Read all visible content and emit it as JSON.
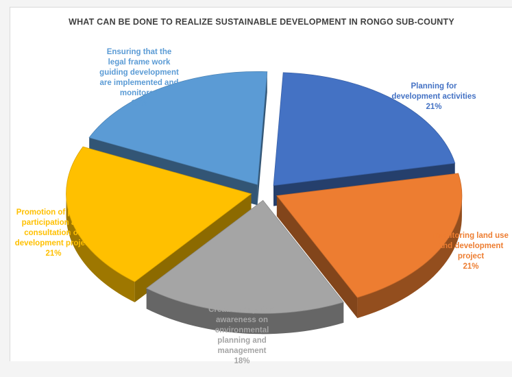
{
  "chart_data": {
    "type": "pie",
    "title": "WHAT CAN BE DONE TO REALIZE SUSTAINABLE DEVELOPMENT IN RONGO SUB-COUNTY",
    "slices": [
      {
        "label": "Planning for\ndevelopment  activities",
        "percent": "21%",
        "value": 21,
        "color": "#4472c4"
      },
      {
        "label": "monitoring land use\nand  development\nproject",
        "percent": "21%",
        "value": 21,
        "color": "#ed7d31"
      },
      {
        "label": "Creation  of  public\nawareness on\nenvironmental\nplanning  and\nmanagement",
        "percent": "18%",
        "value": 18,
        "color": "#a5a5a5"
      },
      {
        "label": "Promotion  of  public\nparticipation  and\nconsultation  on\ndevelopment  project",
        "percent": "21%",
        "value": 21,
        "color": "#ffc000"
      },
      {
        "label": "Ensuring  that  the\nlegal  frame work\nguiding  development\nare  implemented  and\nmonitored",
        "percent": "19%",
        "value": 19,
        "color": "#5b9bd5"
      }
    ],
    "legend": "none",
    "style": "3d-exploded"
  }
}
